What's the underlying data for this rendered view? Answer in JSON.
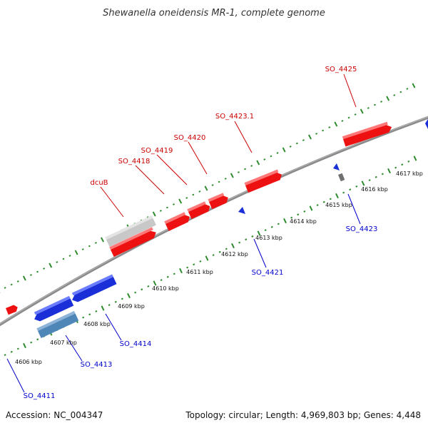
{
  "title": "Shewanella oneidensis MR-1, complete genome",
  "footer": {
    "accession": "Accession: NC_004347",
    "summary": "Topology: circular; Length: 4,969,803 bp; Genes: 4,448"
  },
  "colors": {
    "forward_gene": "#ee1111",
    "reverse_gene": "#1a2fd8",
    "label_forward": "#cc0000",
    "label_reverse": "#0000cc",
    "backbone": "#8a8a8a",
    "tick": "#2e8b2e",
    "grey_gene": "#c8c8c8",
    "steel_gene": "#4f86b8"
  },
  "ruler": {
    "tick_labels": [
      "4606 kbp",
      "4607 kbp",
      "4608 kbp",
      "4609 kbp",
      "4610 kbp",
      "4611 kbp",
      "4612 kbp",
      "4613 kbp",
      "4614 kbp",
      "4615 kbp",
      "4616 kbp",
      "4617 kbp"
    ]
  },
  "genes": {
    "forward_labels": [
      "SO_4425",
      "SO_4423.1",
      "SO_4420",
      "SO_4419",
      "SO_4418",
      "dcuB"
    ],
    "reverse_labels": [
      "SO_4423",
      "SO_4421",
      "SO_4414",
      "SO_4413",
      "SO_4411"
    ]
  }
}
